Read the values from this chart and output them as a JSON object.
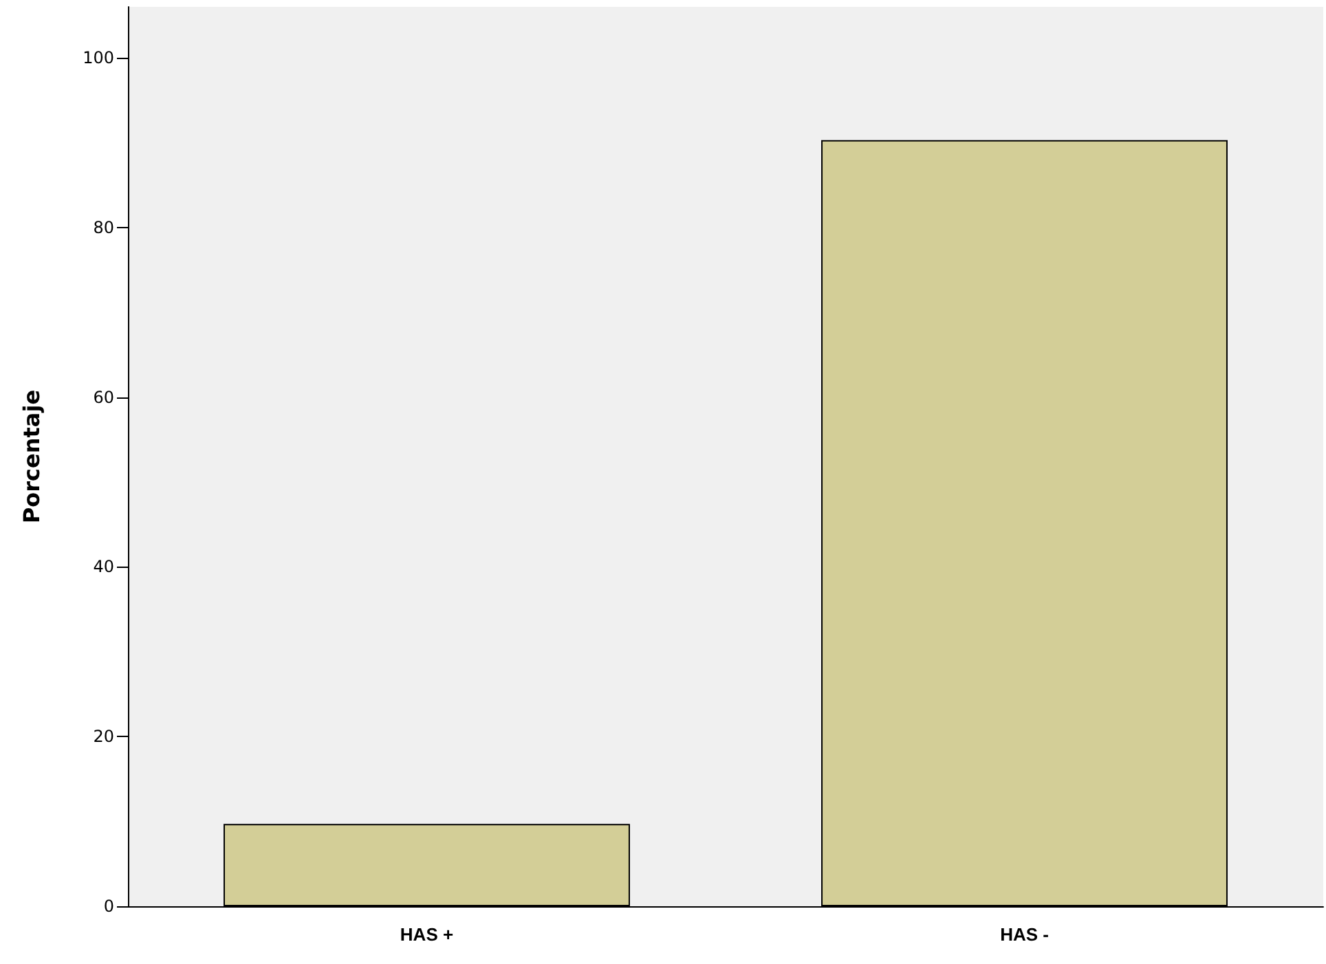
{
  "chart_data": {
    "type": "bar",
    "ylabel": "Porcentaje",
    "categories": [
      "HAS +",
      "HAS -"
    ],
    "values": [
      9.7,
      90.3
    ],
    "color": "#d3ce97",
    "ylim": [
      0,
      106
    ],
    "yticks": [
      0,
      20,
      40,
      60,
      80,
      100
    ],
    "grid": false
  }
}
